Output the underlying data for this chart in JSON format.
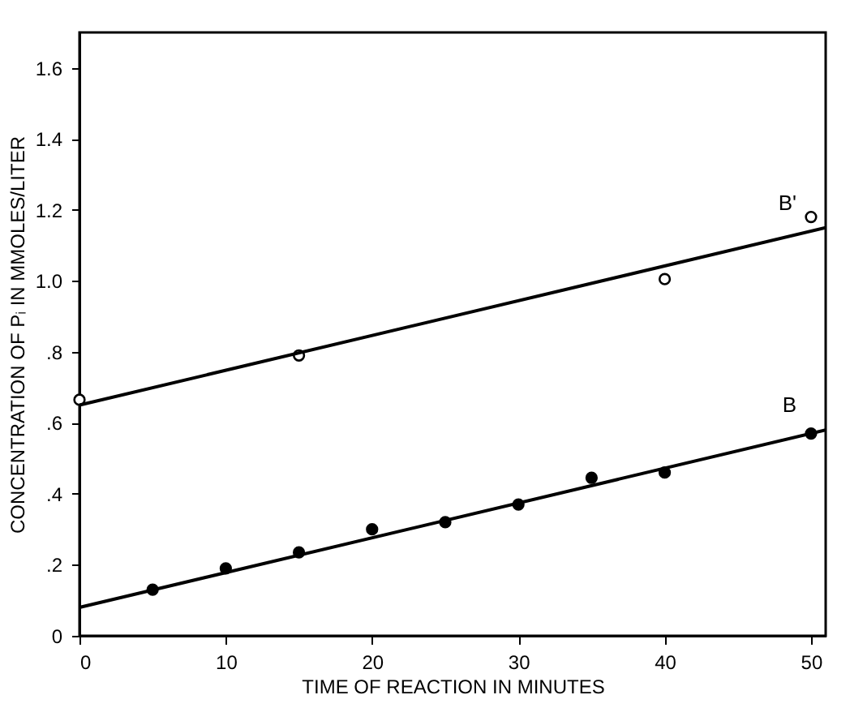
{
  "chart_data": {
    "type": "scatter",
    "xlabel": "TIME OF REACTION IN MINUTES",
    "ylabel": "CONCENTRATION OF Pᵢ IN MMOLES/LITER",
    "xlim": [
      0,
      51
    ],
    "ylim": [
      0,
      1.7
    ],
    "xticks": [
      0,
      10,
      20,
      30,
      40,
      50
    ],
    "yticks": [
      {
        "value": 0,
        "label": "0"
      },
      {
        "value": 0.2,
        "label": ".2"
      },
      {
        "value": 0.4,
        "label": ".4"
      },
      {
        "value": 0.6,
        "label": ".6"
      },
      {
        "value": 0.8,
        "label": ".8"
      },
      {
        "value": 1.0,
        "label": "1.0"
      },
      {
        "value": 1.2,
        "label": "1.2"
      },
      {
        "value": 1.4,
        "label": "1.4"
      },
      {
        "value": 1.6,
        "label": "1.6"
      }
    ],
    "grid": false,
    "legend": false,
    "series": [
      {
        "marker": "circle",
        "color": "#ffffff",
        "x": [
          0,
          15,
          40,
          50
        ],
        "values": [
          0.665,
          0.79,
          1.005,
          1.18
        ]
      },
      {
        "marker": "circle",
        "color": "#000000",
        "x": [
          5,
          10,
          15,
          20,
          25,
          30,
          35,
          40,
          50
        ],
        "values": [
          0.13,
          0.19,
          0.235,
          0.3,
          0.32,
          0.37,
          0.445,
          0.46,
          0.57
        ]
      },
      {
        "name": "B'",
        "type": "line",
        "marker": "none",
        "line_style": "solid",
        "color": "#000000",
        "x": [
          0,
          51
        ],
        "values": [
          0.65,
          1.15
        ]
      },
      {
        "name": "B",
        "type": "line",
        "marker": "none",
        "line_style": "solid",
        "color": "#000000",
        "x": [
          0,
          51
        ],
        "values": [
          0.08,
          0.58
        ]
      }
    ]
  }
}
